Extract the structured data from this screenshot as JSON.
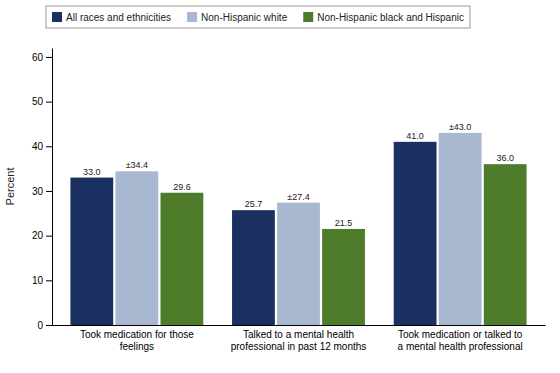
{
  "chart_data": {
    "type": "bar",
    "categories": [
      "Took medication for those\nfeelings",
      "Talked to a mental health\nprofessional in past 12 months",
      "Took medication or talked to\na mental health professional"
    ],
    "series": [
      {
        "name": "All races and ethnicities",
        "color": "#1a3060",
        "values": [
          33.0,
          25.7,
          41.0
        ],
        "value_labels": [
          "33.0",
          "25.7",
          "41.0"
        ]
      },
      {
        "name": "Non-Hispanic white",
        "color": "#a8b8d0",
        "values": [
          34.4,
          27.4,
          43.0
        ],
        "value_labels": [
          "±34.4",
          "±27.4",
          "±43.0"
        ]
      },
      {
        "name": "Non-Hispanic black and Hispanic",
        "color": "#4e7c2a",
        "values": [
          29.6,
          21.5,
          36.0
        ],
        "value_labels": [
          "29.6",
          "21.5",
          "36.0"
        ]
      }
    ],
    "ylabel": "Percent",
    "ylim": [
      0,
      62
    ],
    "yticks": [
      0,
      10,
      20,
      30,
      40,
      50,
      60
    ],
    "grid": false,
    "legend": "top",
    "data_labels": true
  }
}
